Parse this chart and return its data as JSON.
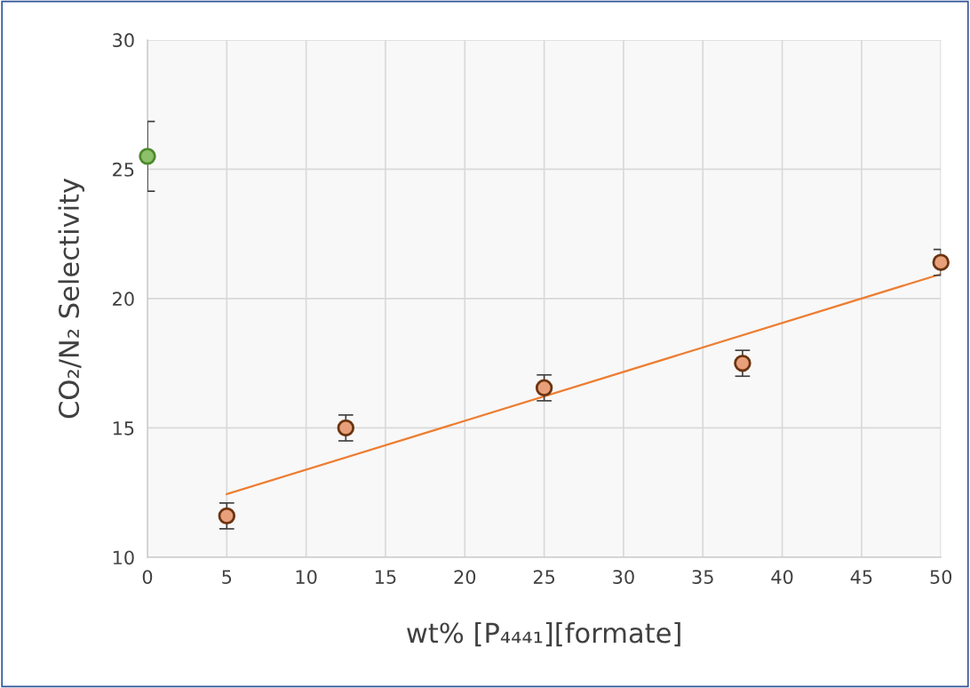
{
  "chart_data": {
    "type": "scatter",
    "xlabel": "wt% [P₄₄₄₁][formate]",
    "ylabel": "CO₂/N₂ Selectivity",
    "xlim": [
      0,
      50
    ],
    "xticks": [
      0,
      5,
      10,
      15,
      20,
      25,
      30,
      35,
      40,
      45,
      50
    ],
    "ylim": [
      10,
      30
    ],
    "yticks": [
      10,
      15,
      20,
      25,
      30
    ],
    "grid": true,
    "series": [
      {
        "color": "#8dc06a",
        "marker": "circle",
        "x": [
          0
        ],
        "values": [
          25.5
        ],
        "errors": [
          1.35
        ]
      },
      {
        "color": "#e8a07a",
        "marker": "circle",
        "x": [
          5,
          12.5,
          25,
          37.5,
          50
        ],
        "values": [
          11.6,
          15.0,
          16.55,
          17.5,
          21.4
        ],
        "errors": [
          0.5,
          0.5,
          0.5,
          0.5,
          0.5
        ]
      },
      {
        "type": "line",
        "color": "#ed7d31",
        "x": [
          5,
          50
        ],
        "values": [
          12.44,
          20.95
        ]
      }
    ]
  }
}
